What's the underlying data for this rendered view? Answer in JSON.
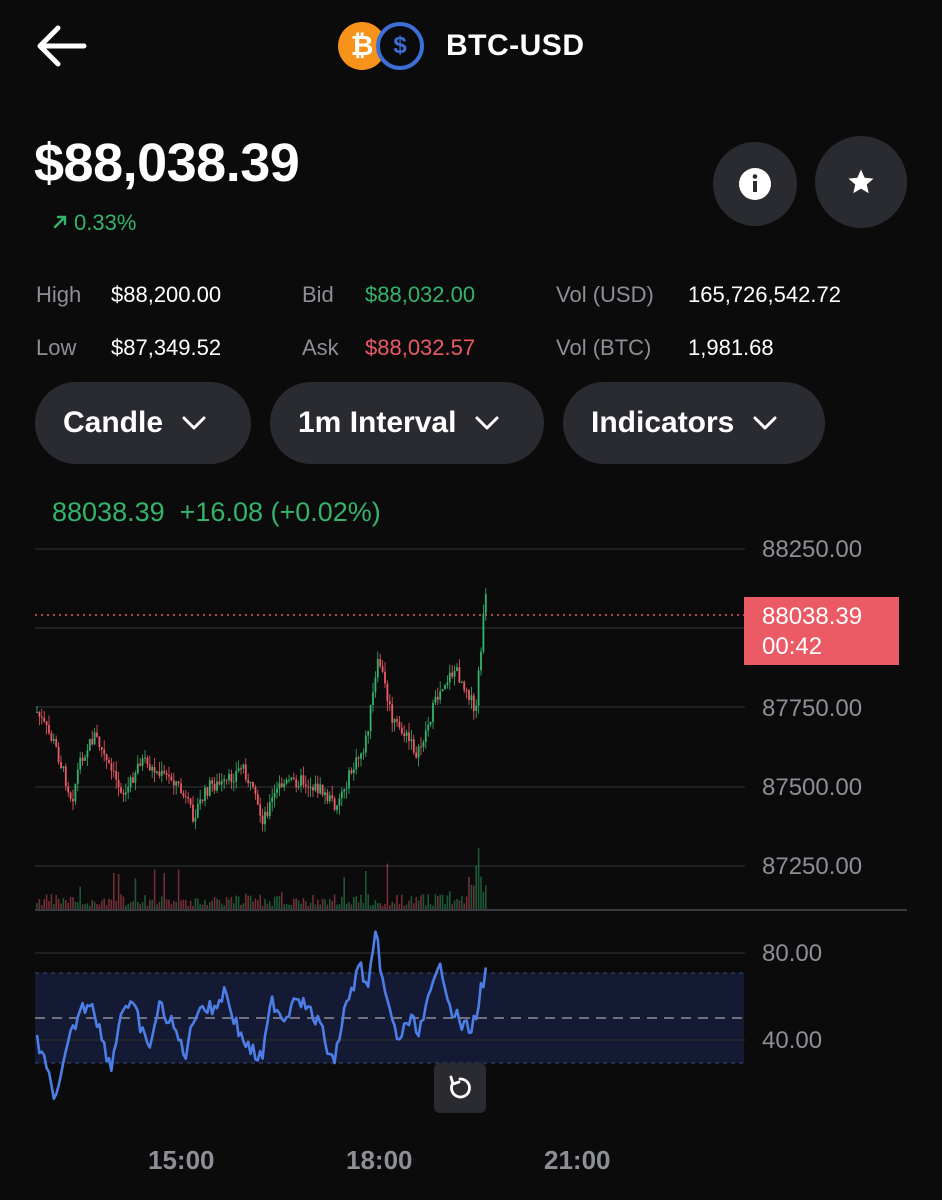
{
  "header": {
    "pair": "BTC-USD",
    "btc_glyph": "₿",
    "usd_glyph": "$"
  },
  "price": {
    "value": "$88,038.39",
    "change": "0.33%"
  },
  "stats": {
    "high_label": "High",
    "high": "$88,200.00",
    "low_label": "Low",
    "low": "$87,349.52",
    "bid_label": "Bid",
    "bid": "$88,032.00",
    "ask_label": "Ask",
    "ask": "$88,032.57",
    "vol_usd_label": "Vol (USD)",
    "vol_usd": "165,726,542.72",
    "vol_btc_label": "Vol (BTC)",
    "vol_btc": "1,981.68"
  },
  "controls": {
    "chart_type": "Candle",
    "interval": "1m Interval",
    "indicators": "Indicators"
  },
  "chart": {
    "legend_price": "88038.39",
    "legend_change": "+16.08 (+0.02%)",
    "current_tag_price": "88038.39",
    "current_tag_timer": "00:42",
    "price_ticks": [
      "88250.00",
      "87750.00",
      "87500.00",
      "87250.00"
    ],
    "rsi_ticks": [
      "80.00",
      "40.00"
    ],
    "time_ticks": [
      "15:00",
      "18:00",
      "21:00"
    ]
  },
  "colors": {
    "up": "#35b36b",
    "down": "#ec5a66",
    "rsi": "#4d7ee8",
    "panel": "#2a2b30"
  },
  "icons": {
    "back": "arrow-left-icon",
    "info": "info-icon",
    "star": "star-icon",
    "reset": "reset-icon",
    "chevron": "chevron-down-icon",
    "trend": "trend-up-icon"
  }
}
